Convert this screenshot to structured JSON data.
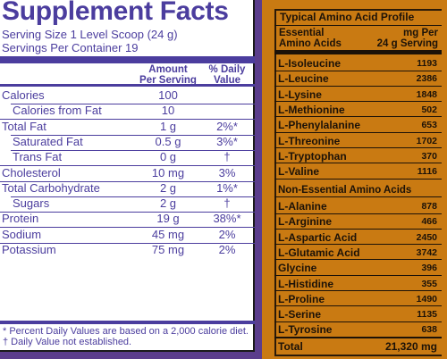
{
  "supplement_facts": {
    "title": "Supplement Facts",
    "serving_size": "Serving Size 1 Level Scoop (24 g)",
    "servings_per_container": "Servings Per Container 19",
    "header_amount_1": "Amount",
    "header_amount_2": "Per Serving",
    "header_dv_1": "% Daily",
    "header_dv_2": "Value",
    "rows": [
      {
        "label": "Calories",
        "amount": "100",
        "dv": ""
      },
      {
        "label": "Calories from Fat",
        "amount": "10",
        "dv": ""
      },
      {
        "label": "Total Fat",
        "amount": "1 g",
        "dv": "2%*"
      },
      {
        "label": "Saturated Fat",
        "amount": "0.5 g",
        "dv": "3%*"
      },
      {
        "label": "Trans Fat",
        "amount": "0 g",
        "dv": "†"
      },
      {
        "label": "Cholesterol",
        "amount": "10 mg",
        "dv": "3%"
      },
      {
        "label": "Total Carbohydrate",
        "amount": "2 g",
        "dv": "1%*"
      },
      {
        "label": "Sugars",
        "amount": "2 g",
        "dv": "†"
      },
      {
        "label": "Protein",
        "amount": "19 g",
        "dv": "38%*"
      },
      {
        "label": "Sodium",
        "amount": "45 mg",
        "dv": "2%"
      },
      {
        "label": "Potassium",
        "amount": "75 mg",
        "dv": "2%"
      }
    ],
    "footnote_1": "* Percent Daily Values are based on a 2,000 calorie diet.",
    "footnote_2": "† Daily Value not established."
  },
  "amino_profile": {
    "title": "Typical Amino Acid Profile",
    "col_left_1": "Essential",
    "col_left_2": "Amino Acids",
    "col_right_1": "mg Per",
    "col_right_2": "24 g Serving",
    "essential": [
      {
        "name": "L-Isoleucine",
        "value": "1193"
      },
      {
        "name": "L-Leucine",
        "value": "2386"
      },
      {
        "name": "L-Lysine",
        "value": "1848"
      },
      {
        "name": "L-Methionine",
        "value": "502"
      },
      {
        "name": "L-Phenylalanine",
        "value": "653"
      },
      {
        "name": "L-Threonine",
        "value": "1702"
      },
      {
        "name": "L-Tryptophan",
        "value": "370"
      },
      {
        "name": "L-Valine",
        "value": "1116"
      }
    ],
    "non_essential_title": "Non-Essential Amino Acids",
    "non_essential": [
      {
        "name": "L-Alanine",
        "value": "878"
      },
      {
        "name": "L-Arginine",
        "value": "466"
      },
      {
        "name": "L-Aspartic Acid",
        "value": "2450"
      },
      {
        "name": "L-Glutamic Acid",
        "value": "3742"
      },
      {
        "name": "Glycine",
        "value": "396"
      },
      {
        "name": "L-Histidine",
        "value": "355"
      },
      {
        "name": "L-Proline",
        "value": "1490"
      },
      {
        "name": "L-Serine",
        "value": "1135"
      },
      {
        "name": "L-Tyrosine",
        "value": "638"
      }
    ],
    "total_label": "Total",
    "total_value": "21,320 mg"
  }
}
